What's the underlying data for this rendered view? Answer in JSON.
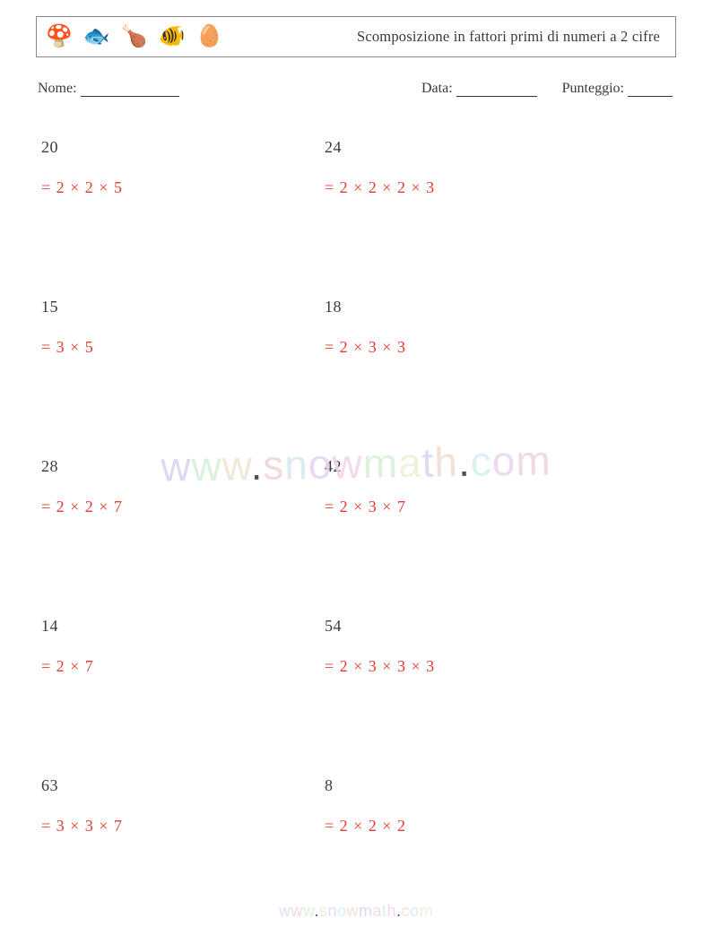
{
  "header": {
    "title": "Scomposizione in fattori primi di numeri a 2 cifre",
    "icons": [
      "🍄",
      "🐟",
      "🍗",
      "🐠",
      "🥚"
    ]
  },
  "info": {
    "name_label": "Nome:",
    "date_label": "Data:",
    "score_label": "Punteggio:"
  },
  "colors": {
    "text": "#3a3a3a",
    "answer": "#e23a2e",
    "border": "#888888",
    "watermark_colors": [
      "#d4d4f0",
      "#d4f0d8",
      "#f0e4d4",
      "#f0d4d4",
      "#d4e8f0",
      "#e4d4f0",
      "#f0d4e8",
      "#d8f0d4",
      "#f0f0d4",
      "#d4d8f0",
      "#f0dcd4",
      "#d4f0f0",
      "#e8d4f0",
      "#f0d4dc",
      "#d4f0e0"
    ],
    "footer_colors": [
      "#d4e0f0",
      "#f0d4d4",
      "#d8f0d4",
      "#f0e8d4",
      "#e0d4f0",
      "#d4f0ec",
      "#f0dcd4",
      "#d4d4f0",
      "#f0d4e4",
      "#d4f0d8",
      "#ecd4f0",
      "#f0e0d4",
      "#d4ecf0",
      "#e4f0d4",
      "#f0d4d8"
    ]
  },
  "problems": [
    {
      "number": "20",
      "answer": "= 2 × 2 × 5"
    },
    {
      "number": "24",
      "answer": "= 2 × 2 × 2 × 3"
    },
    {
      "number": "15",
      "answer": "= 3 × 5"
    },
    {
      "number": "18",
      "answer": "= 2 × 3 × 3"
    },
    {
      "number": "28",
      "answer": "= 2 × 2 × 7"
    },
    {
      "number": "42",
      "answer": "= 2 × 3 × 7"
    },
    {
      "number": "14",
      "answer": "= 2 × 7"
    },
    {
      "number": "54",
      "answer": "= 2 × 3 × 3 × 3"
    },
    {
      "number": "63",
      "answer": "= 3 × 3 × 7"
    },
    {
      "number": "8",
      "answer": "= 2 × 2 × 2"
    }
  ],
  "watermark": "www.snowmath.com",
  "footer": "www.snowmath.com"
}
